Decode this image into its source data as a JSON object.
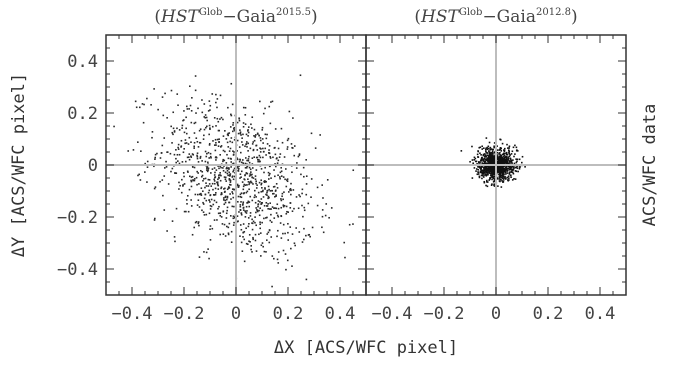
{
  "chart_data": [
    {
      "type": "scatter",
      "panel": "left",
      "title_parts": {
        "a": "HST",
        "a_sup": "Glob",
        "sep": "−Gaia",
        "b_sup": "2015.5"
      },
      "xlabel": "ΔX [ACS/WFC pixel]",
      "ylabel": "ΔY [ACS/WFC pixel]",
      "xlim": [
        -0.5,
        0.5
      ],
      "ylim": [
        -0.5,
        0.5
      ],
      "xticks": [
        -0.4,
        -0.2,
        0,
        0.2,
        0.4
      ],
      "xtick_labels": [
        "−0.4",
        "−0.2",
        "0",
        "0.2",
        "0.4"
      ],
      "yticks": [
        -0.4,
        -0.2,
        0,
        0.2,
        0.4
      ],
      "ytick_labels": [
        "−0.4",
        "−0.2",
        "0",
        "0.2",
        "0.4"
      ],
      "reference_lines": {
        "x": 0,
        "y": 0
      },
      "grid": false,
      "cloud": {
        "n": 1100,
        "center_x": 0.0,
        "center_y": -0.05,
        "sigma_x": 0.15,
        "sigma_y": 0.15,
        "correlation": -0.35,
        "color": "#2a2a2a"
      }
    },
    {
      "type": "scatter",
      "panel": "right",
      "title_parts": {
        "a": "HST",
        "a_sup": "Glob",
        "sep": "−Gaia",
        "b_sup": "2012.8"
      },
      "xlabel": "ΔX [ACS/WFC pixel]",
      "ylabel": "ACS/WFC data",
      "xlim": [
        -0.5,
        0.5
      ],
      "ylim": [
        -0.5,
        0.5
      ],
      "xticks": [
        -0.4,
        -0.2,
        0,
        0.2,
        0.4
      ],
      "xtick_labels": [
        "−0.4",
        "−0.2",
        "0",
        "0.2",
        "0.4"
      ],
      "reference_lines": {
        "x": 0,
        "y": 0
      },
      "grid": false,
      "cloud": {
        "n": 1100,
        "center_x": 0.0,
        "center_y": 0.0,
        "sigma_x": 0.035,
        "sigma_y": 0.03,
        "correlation": 0.0,
        "color": "#111111"
      }
    }
  ]
}
